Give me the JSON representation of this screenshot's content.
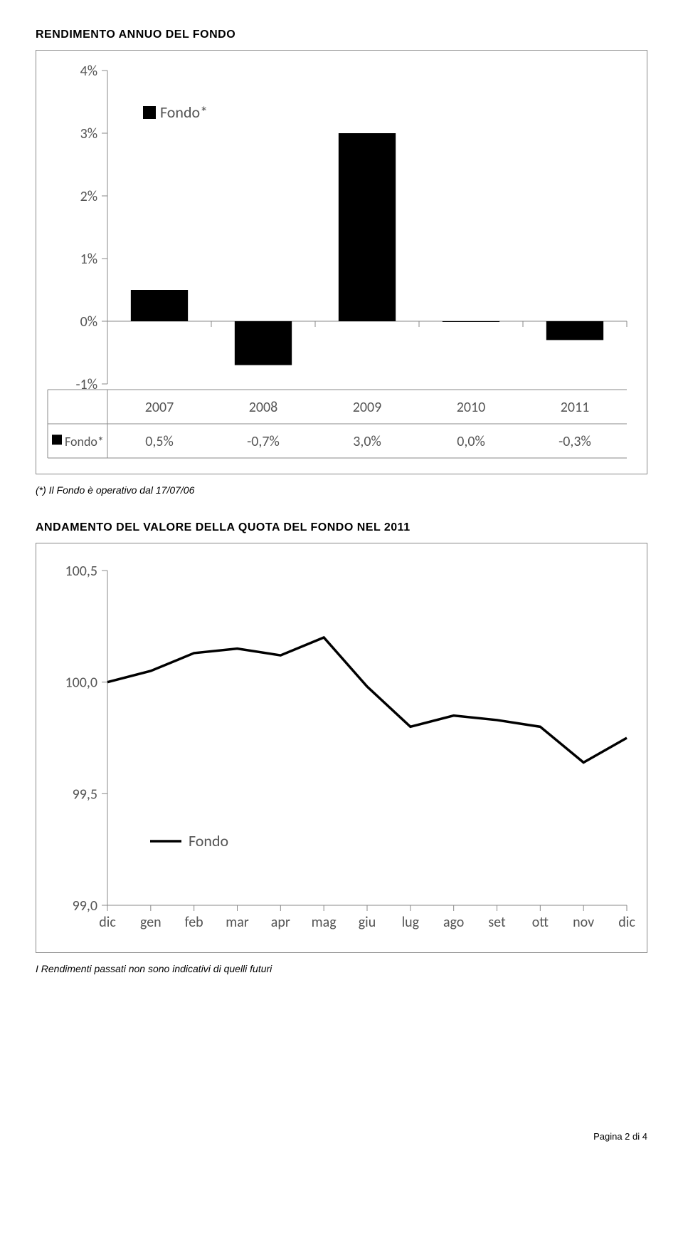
{
  "section1_title": "RENDIMENTO ANNUO DEL FONDO",
  "bar_chart": {
    "type": "bar",
    "legend_label": "Fondo*",
    "legend_marker_color": "#000000",
    "y_ticks": [
      "4%",
      "3%",
      "2%",
      "1%",
      "0%",
      "-1%"
    ],
    "y_values": [
      4,
      3,
      2,
      1,
      0,
      -1
    ],
    "ylim": [
      -1,
      4
    ],
    "categories": [
      "2007",
      "2008",
      "2009",
      "2010",
      "2011"
    ],
    "values": [
      0.5,
      -0.7,
      3.0,
      0.0,
      -0.3
    ],
    "value_labels": [
      "0,5%",
      "-0,7%",
      "3,0%",
      "0,0%",
      "-0,3%"
    ],
    "row_header": "Fondo*",
    "bar_color": "#000000",
    "axis_color": "#888888",
    "tick_label_fontsize": 20,
    "table_fontsize": 20,
    "bar_width": 0.55
  },
  "footnote": "(*) Il Fondo è operativo dal 17/07/06",
  "section2_title": "ANDAMENTO DEL VALORE DELLA QUOTA DEL FONDO NEL 2011",
  "line_chart": {
    "type": "line",
    "legend_label": "Fondo",
    "y_ticks": [
      "100,5",
      "100,0",
      "99,5",
      "99,0"
    ],
    "y_values": [
      100.5,
      100.0,
      99.5,
      99.0
    ],
    "ylim": [
      99.0,
      100.5
    ],
    "x_labels": [
      "dic",
      "gen",
      "feb",
      "mar",
      "apr",
      "mag",
      "giu",
      "lug",
      "ago",
      "set",
      "ott",
      "nov",
      "dic"
    ],
    "series": [
      100.0,
      100.05,
      100.13,
      100.15,
      100.12,
      100.2,
      99.98,
      99.8,
      99.85,
      99.83,
      99.8,
      99.64,
      99.75
    ],
    "line_color": "#000000",
    "line_width": 3.5,
    "axis_color": "#888888",
    "tick_label_fontsize": 20
  },
  "disclaimer": "I Rendimenti passati non sono indicativi di quelli futuri",
  "page_number": "Pagina 2 di 4"
}
